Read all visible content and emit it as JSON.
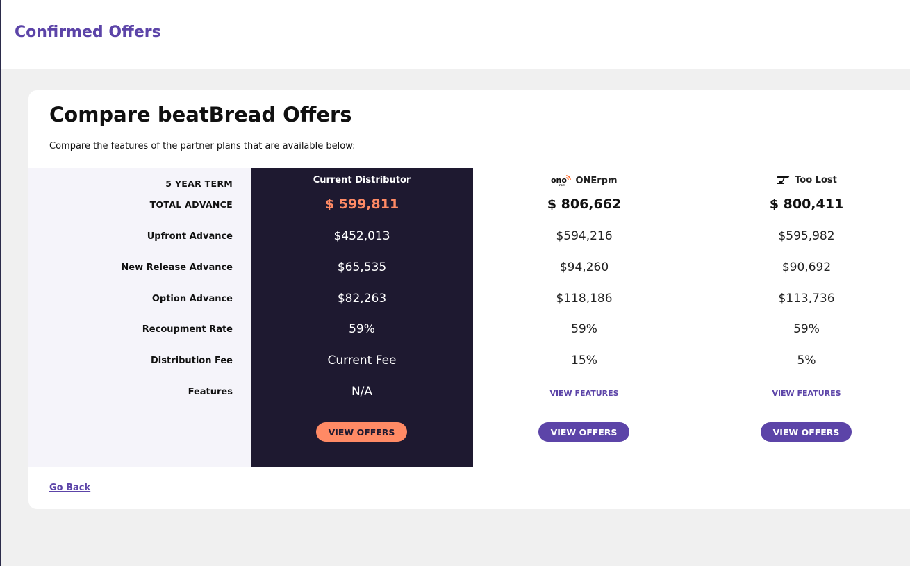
{
  "page": {
    "title": "Confirmed Offers"
  },
  "card": {
    "heading": "Compare beatBread Offers",
    "subtitle": "Compare the features of the partner plans that are available below:",
    "go_back": "Go Back"
  },
  "row_labels": {
    "term": "5 YEAR TERM",
    "total": "TOTAL ADVANCE",
    "upfront": "Upfront Advance",
    "new_release": "New Release Advance",
    "option": "Option Advance",
    "recoupment": "Recoupment Rate",
    "distribution_fee": "Distribution Fee",
    "features": "Features"
  },
  "plans": [
    {
      "name": "Current Distributor",
      "total": "$ 599,811",
      "upfront": "$452,013",
      "new_release": "$65,535",
      "option": "$82,263",
      "recoupment": "59%",
      "distribution_fee": "Current Fee",
      "features": "N/A",
      "button": "VIEW OFFERS"
    },
    {
      "name": "ONErpm",
      "logo": "onerpm-logo-icon",
      "total": "$ 806,662",
      "upfront": "$594,216",
      "new_release": "$94,260",
      "option": "$118,186",
      "recoupment": "59%",
      "distribution_fee": "15%",
      "features": "VIEW FEATURES",
      "button": "VIEW OFFERS"
    },
    {
      "name": "Too Lost",
      "logo": "toolost-logo-icon",
      "total": "$ 800,411",
      "upfront": "$595,982",
      "new_release": "$90,692",
      "option": "$113,736",
      "recoupment": "59%",
      "distribution_fee": "5%",
      "features": "VIEW FEATURES",
      "button": "VIEW OFFERS"
    }
  ],
  "colors": {
    "brand_purple": "#5c44a8",
    "accent_orange": "#ff8a65",
    "current_column_bg": "#1e1930",
    "label_column_bg": "#f5f4fa",
    "page_bg": "#f0f0f0"
  }
}
